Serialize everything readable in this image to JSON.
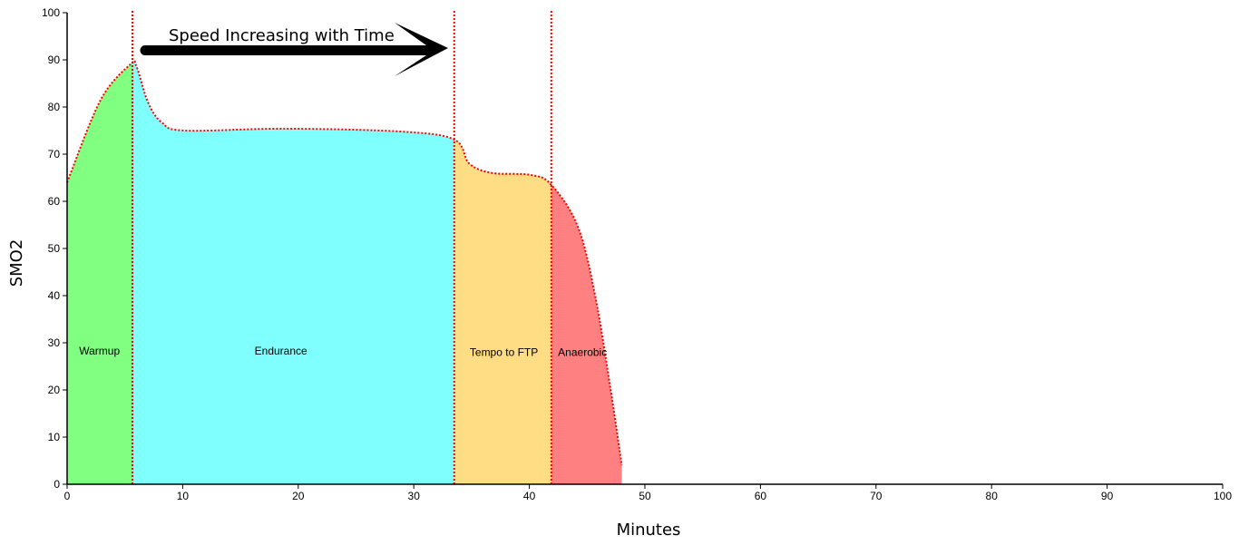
{
  "chart_data": {
    "type": "area",
    "title": "",
    "xlabel": "Minutes",
    "ylabel": "SMO2",
    "xlim": [
      0,
      100
    ],
    "ylim": [
      0,
      100
    ],
    "xticks": [
      0,
      10,
      20,
      30,
      40,
      50,
      60,
      70,
      80,
      90,
      100
    ],
    "yticks": [
      0,
      10,
      20,
      30,
      40,
      50,
      60,
      70,
      80,
      90,
      100
    ],
    "grid": false,
    "series": [
      {
        "name": "SMO2",
        "x": [
          0,
          2.9,
          5.5,
          6.0,
          7.0,
          8.2,
          10.2,
          18.8,
          28.8,
          33.5,
          34.8,
          36.8,
          40.1,
          41.9,
          44.2,
          45.7,
          47.0,
          48.0
        ],
        "y": [
          64,
          81.5,
          89.1,
          88.6,
          81,
          76.7,
          75,
          75.4,
          74.8,
          73.1,
          68,
          66,
          65.6,
          63.5,
          54.6,
          39.9,
          20.6,
          4
        ]
      }
    ],
    "zones": [
      {
        "label": "Warmup",
        "start": 0,
        "end": 5.65,
        "color": "#80ff80",
        "label_x": 2.8,
        "label_y": 27.5
      },
      {
        "label": "Endurance",
        "start": 5.65,
        "end": 33.5,
        "color": "#80ffff",
        "label_x": 18.5,
        "label_y": 27.5
      },
      {
        "label": "Tempo to FTP",
        "start": 33.5,
        "end": 41.9,
        "color": "#fedd85",
        "label_x": 37.8,
        "label_y": 27.2
      },
      {
        "label": "Anaerobic",
        "start": 41.9,
        "end": 48.0,
        "color": "#ff8080",
        "label_x": 44.6,
        "label_y": 27.2
      }
    ],
    "boundaries": [
      5.65,
      33.5,
      41.9
    ],
    "line_color": "#ff0000",
    "annotation": {
      "text": "Speed Increasing with Time",
      "arrow": "right"
    }
  }
}
